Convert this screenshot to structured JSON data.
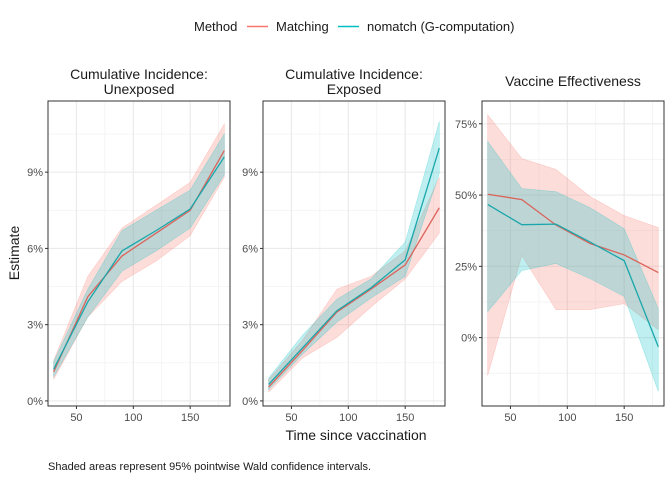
{
  "chart_data": {
    "type": "line",
    "legend": {
      "title": "Method",
      "position": "top",
      "entries": [
        {
          "name": "Matching",
          "color": "#F8766D"
        },
        {
          "name": "nomatch (G-computation)",
          "color": "#00BFC4"
        }
      ]
    },
    "xlabel": "Time since vaccination",
    "ylabel": "Estimate",
    "caption": "Shaded areas represent 95% pointwise Wald confidence intervals.",
    "grid": true,
    "panels": [
      {
        "title_lines": [
          "Cumulative Incidence:",
          "Unexposed"
        ],
        "xlim": [
          25,
          185
        ],
        "ylim": [
          -0.2,
          11.8
        ],
        "x_ticks": [
          50,
          100,
          150
        ],
        "y_ticks": [
          0,
          3,
          6,
          9
        ],
        "y_tick_labels": [
          "0%",
          "3%",
          "6%",
          "9%"
        ],
        "x": [
          30,
          60,
          90,
          120,
          150,
          180
        ],
        "series": [
          {
            "name": "Matching",
            "values": [
              1.15,
              4.1,
              5.7,
              6.6,
              7.5,
              9.85
            ],
            "lower": [
              0.85,
              3.3,
              4.7,
              5.5,
              6.5,
              8.8
            ],
            "upper": [
              1.6,
              4.9,
              6.8,
              7.7,
              8.6,
              10.9
            ]
          },
          {
            "name": "nomatch (G-computation)",
            "values": [
              1.25,
              3.9,
              5.9,
              6.7,
              7.55,
              9.6
            ],
            "lower": [
              0.95,
              3.3,
              5.1,
              5.9,
              6.8,
              8.9
            ],
            "upper": [
              1.55,
              4.4,
              6.7,
              7.5,
              8.3,
              10.5
            ]
          }
        ]
      },
      {
        "title_lines": [
          "Cumulative Incidence:",
          "Exposed"
        ],
        "xlim": [
          25,
          185
        ],
        "ylim": [
          -0.2,
          11.8
        ],
        "x_ticks": [
          50,
          100,
          150
        ],
        "y_ticks": [
          0,
          3,
          6,
          9
        ],
        "y_tick_labels": [
          "0%",
          "3%",
          "6%",
          "9%"
        ],
        "x": [
          30,
          60,
          90,
          120,
          150,
          180
        ],
        "series": [
          {
            "name": "Matching",
            "values": [
              0.55,
              2.0,
              3.5,
              4.4,
              5.35,
              7.6
            ],
            "lower": [
              0.35,
              1.7,
              2.5,
              3.7,
              4.8,
              6.6
            ],
            "upper": [
              0.85,
              2.4,
              4.4,
              4.9,
              5.9,
              8.8
            ]
          },
          {
            "name": "nomatch (G-computation)",
            "values": [
              0.65,
              2.1,
              3.55,
              4.45,
              5.55,
              9.95
            ],
            "lower": [
              0.45,
              1.85,
              3.1,
              4.05,
              4.9,
              8.95
            ],
            "upper": [
              0.9,
              2.6,
              4.0,
              4.8,
              6.25,
              11.0
            ]
          }
        ]
      },
      {
        "title_lines": [
          "Vaccine Effectiveness"
        ],
        "xlim": [
          25,
          185
        ],
        "ylim": [
          -24,
          83
        ],
        "x_ticks": [
          50,
          100,
          150
        ],
        "y_ticks": [
          0,
          25,
          50,
          75
        ],
        "y_tick_labels": [
          "0%",
          "25%",
          "50%",
          "75%"
        ],
        "x": [
          30,
          60,
          90,
          120,
          150,
          180
        ],
        "series": [
          {
            "name": "Matching",
            "values": [
              50.3,
              48.4,
              39.5,
              33.0,
              29.0,
              22.8
            ],
            "lower": [
              -13.3,
              28.8,
              9.8,
              9.8,
              11.9,
              2.8
            ],
            "upper": [
              78.2,
              62.8,
              59.0,
              49.5,
              42.8,
              38.6
            ]
          },
          {
            "name": "nomatch (G-computation)",
            "values": [
              46.7,
              39.6,
              39.8,
              33.5,
              27.0,
              -3.2
            ],
            "lower": [
              9.1,
              23.5,
              26.0,
              20.7,
              14.4,
              -18.9
            ],
            "upper": [
              68.8,
              52.3,
              51.2,
              45.6,
              38.2,
              10.2
            ]
          }
        ]
      }
    ]
  }
}
